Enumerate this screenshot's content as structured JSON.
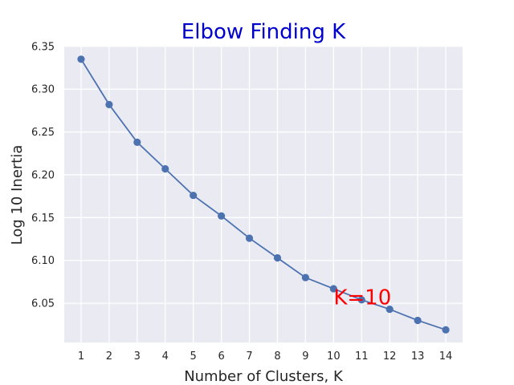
{
  "chart_data": {
    "type": "line",
    "title": "Elbow Finding K",
    "xlabel": "Number of Clusters, K",
    "ylabel": "Log 10 Inertia",
    "x": [
      1,
      2,
      3,
      4,
      5,
      6,
      7,
      8,
      9,
      10,
      11,
      12,
      13,
      14
    ],
    "series": [
      {
        "values": [
          6.335,
          6.282,
          6.238,
          6.207,
          6.176,
          6.152,
          6.126,
          6.103,
          6.08,
          6.067,
          6.054,
          6.043,
          6.03,
          6.019
        ],
        "color": "#4c72b0"
      }
    ],
    "xticks": [
      "1",
      "2",
      "3",
      "4",
      "5",
      "6",
      "7",
      "8",
      "9",
      "10",
      "11",
      "12",
      "13",
      "14"
    ],
    "yticks": [
      "6.05",
      "6.10",
      "6.15",
      "6.20",
      "6.25",
      "6.30",
      "6.35"
    ],
    "xlim": [
      0.4,
      14.6
    ],
    "ylim": [
      6.0042,
      6.3498
    ],
    "grid": true,
    "legend": "none",
    "annotations": [
      {
        "text": "K=10",
        "x": 10,
        "y": 6.057,
        "color": "#ff0000"
      }
    ],
    "title_color": "#0000cc",
    "background_color": "#eaeaf2",
    "grid_color": "#ffffff"
  }
}
